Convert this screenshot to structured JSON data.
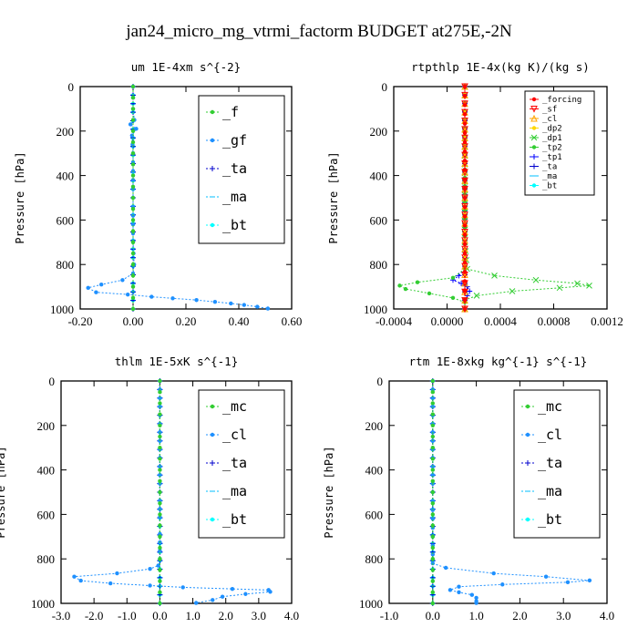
{
  "figure_title": "jan24_micro_mg_vtrmi_factorm  BUDGET at275E,-2N",
  "colors": {
    "_forcing": "#ff0000",
    "_sf": "#ff0000",
    "_cl": "#1e90ff",
    "_cl_small": "#ffa500",
    "_dp2": "#ffd700",
    "_dp1": "#32cd32",
    "_tp2": "#32cd32",
    "_tp1": "#0000ff",
    "_ta": "#0000cd",
    "_ma": "#00bfff",
    "_bt": "#00ffff",
    "_f": "#32cd32",
    "_gf": "#1e90ff",
    "_mc": "#32cd32"
  },
  "chart_data": [
    {
      "type": "line",
      "title": "um   1E-4xm s^{-2}",
      "ylabel": "Pressure [hPa]",
      "xlim": [
        -0.2,
        0.6
      ],
      "ylim": [
        1000,
        0
      ],
      "xticks": [
        "-0.20",
        "0.00",
        "0.20",
        "0.40",
        "0.60"
      ],
      "yticks": [
        "0",
        "200",
        "400",
        "600",
        "800",
        "1000"
      ],
      "legend_position": "top-right",
      "legend": [
        "_f",
        "_gf",
        "_ta",
        "_ma",
        "_bt"
      ],
      "series": [
        {
          "name": "_f",
          "color": "#32cd32",
          "marker": "o",
          "points": [
            [
              0.0,
              0
            ],
            [
              0.0,
              100
            ],
            [
              0.0,
              200
            ],
            [
              0.0,
              300
            ],
            [
              0.0,
              400
            ],
            [
              0.0,
              500
            ],
            [
              0.0,
              600
            ],
            [
              0.0,
              700
            ],
            [
              0.0,
              800
            ],
            [
              0.0,
              900
            ],
            [
              0.0,
              1000
            ]
          ]
        },
        {
          "name": "_gf",
          "color": "#1e90ff",
          "marker": "o",
          "points": [
            [
              0.0,
              0
            ],
            [
              0.0,
              100
            ],
            [
              0.005,
              150
            ],
            [
              -0.01,
              170
            ],
            [
              0.012,
              190
            ],
            [
              -0.004,
              220
            ],
            [
              0.0,
              300
            ],
            [
              0.0,
              500
            ],
            [
              0.0,
              700
            ],
            [
              0.004,
              800
            ],
            [
              0.0,
              840
            ],
            [
              -0.04,
              870
            ],
            [
              -0.12,
              890
            ],
            [
              -0.17,
              905
            ],
            [
              -0.14,
              925
            ],
            [
              -0.02,
              935
            ],
            [
              0.07,
              945
            ],
            [
              0.15,
              952
            ],
            [
              0.24,
              960
            ],
            [
              0.31,
              968
            ],
            [
              0.37,
              975
            ],
            [
              0.42,
              982
            ],
            [
              0.47,
              990
            ],
            [
              0.51,
              998
            ]
          ]
        },
        {
          "name": "_ta",
          "color": "#0000cd",
          "marker": "+",
          "points": [
            [
              0.0,
              0
            ],
            [
              0.0,
              500
            ],
            [
              0.0,
              1000
            ]
          ]
        },
        {
          "name": "_ma",
          "color": "#00bfff",
          "marker": "-",
          "points": [
            [
              0.0,
              0
            ],
            [
              0.0,
              500
            ],
            [
              0.0,
              1000
            ]
          ]
        },
        {
          "name": "_bt",
          "color": "#00ffff",
          "marker": "o",
          "points": [
            [
              0.0,
              0
            ],
            [
              0.0,
              500
            ],
            [
              0.0,
              1000
            ]
          ]
        }
      ]
    },
    {
      "type": "line",
      "title": "rtpthlp   1E-4x(kg K)/(kg s)",
      "ylabel": "Pressure [hPa]",
      "xlim": [
        -0.0006,
        0.0012
      ],
      "ylim": [
        1000,
        0
      ],
      "xticks": [
        "-0.0004",
        "0.0000",
        "0.0004",
        "0.0008",
        "0.0012"
      ],
      "yticks": [
        "0",
        "200",
        "400",
        "600",
        "800",
        "1000"
      ],
      "legend_position": "top-right",
      "legend": [
        "_forcing",
        "_sf",
        "_cl",
        "_dp2",
        "_dp1",
        "_tp2",
        "_tp1",
        "_ta",
        "_ma",
        "_bt"
      ],
      "series": [
        {
          "name": "_forcing",
          "color": "#ff0000",
          "marker": "o",
          "points": [
            [
              0.0,
              0
            ],
            [
              0.0,
              250
            ],
            [
              0.0,
              500
            ],
            [
              0.0,
              750
            ],
            [
              0.0,
              1000
            ]
          ]
        },
        {
          "name": "_sf",
          "color": "#ff0000",
          "marker": "v",
          "points": [
            [
              0.0,
              0
            ],
            [
              0.0,
              500
            ],
            [
              0.0,
              1000
            ]
          ]
        },
        {
          "name": "_cl",
          "color": "#ffa500",
          "marker": "^",
          "points": [
            [
              0.0,
              0
            ],
            [
              0.0,
              500
            ],
            [
              0.0,
              1000
            ]
          ]
        },
        {
          "name": "_dp2",
          "color": "#ffd700",
          "marker": "o",
          "points": [
            [
              0.0,
              0
            ],
            [
              0.0,
              500
            ],
            [
              0.0,
              1000
            ]
          ]
        },
        {
          "name": "_dp1",
          "color": "#32cd32",
          "marker": "x",
          "points": [
            [
              0.0,
              0
            ],
            [
              0.0,
              700
            ],
            [
              2e-05,
              820
            ],
            [
              0.00025,
              850
            ],
            [
              0.0006,
              870
            ],
            [
              0.00095,
              885
            ],
            [
              0.00105,
              895
            ],
            [
              0.0008,
              905
            ],
            [
              0.0004,
              920
            ],
            [
              0.0001,
              940
            ],
            [
              0.0,
              960
            ],
            [
              0.0,
              1000
            ]
          ]
        },
        {
          "name": "_tp2",
          "color": "#32cd32",
          "marker": "o",
          "points": [
            [
              0.0,
              0
            ],
            [
              0.0,
              820
            ],
            [
              -0.0001,
              860
            ],
            [
              -0.0004,
              880
            ],
            [
              -0.00055,
              895
            ],
            [
              -0.0005,
              910
            ],
            [
              -0.0003,
              930
            ],
            [
              -0.0001,
              950
            ],
            [
              0.0,
              970
            ],
            [
              0.0,
              1000
            ]
          ]
        },
        {
          "name": "_tp1",
          "color": "#0000ff",
          "marker": "+",
          "points": [
            [
              0.0,
              0
            ],
            [
              0.0,
              820
            ],
            [
              -5e-05,
              850
            ],
            [
              -0.0001,
              870
            ],
            [
              -3e-05,
              885
            ],
            [
              0.0,
              893
            ],
            [
              2e-05,
              900
            ],
            [
              4e-05,
              920
            ],
            [
              2e-05,
              940
            ],
            [
              0.0,
              960
            ],
            [
              0.0,
              1000
            ]
          ]
        },
        {
          "name": "_ta",
          "color": "#0000cd",
          "marker": "+",
          "points": [
            [
              0.0,
              0
            ],
            [
              0.0,
              500
            ],
            [
              0.0,
              1000
            ]
          ]
        },
        {
          "name": "_ma",
          "color": "#00bfff",
          "marker": "-",
          "points": [
            [
              0.0,
              0
            ],
            [
              0.0,
              500
            ],
            [
              0.0,
              1000
            ]
          ]
        },
        {
          "name": "_bt",
          "color": "#00ffff",
          "marker": "o",
          "points": [
            [
              0.0,
              0
            ],
            [
              0.0,
              500
            ],
            [
              0.0,
              1000
            ]
          ]
        }
      ]
    },
    {
      "type": "line",
      "title": "thlm   1E-5xK s^{-1}",
      "ylabel": "Pressure [hPa]",
      "xlim": [
        -3.0,
        4.0
      ],
      "ylim": [
        1000,
        0
      ],
      "xticks": [
        "-3.0",
        "-2.0",
        "-1.0",
        "0.0",
        "1.0",
        "2.0",
        "3.0",
        "4.0"
      ],
      "yticks": [
        "0",
        "200",
        "400",
        "600",
        "800",
        "1000"
      ],
      "legend_position": "top-right",
      "legend": [
        "_mc",
        "_cl",
        "_ta",
        "_ma",
        "_bt"
      ],
      "series": [
        {
          "name": "_mc",
          "color": "#32cd32",
          "marker": "o",
          "points": [
            [
              0.0,
              0
            ],
            [
              0.0,
              100
            ],
            [
              0.0,
              200
            ],
            [
              0.0,
              300
            ],
            [
              0.0,
              400
            ],
            [
              0.0,
              500
            ],
            [
              0.0,
              600
            ],
            [
              0.0,
              700
            ],
            [
              0.0,
              800
            ],
            [
              0.0,
              900
            ],
            [
              0.0,
              1000
            ]
          ]
        },
        {
          "name": "_cl",
          "color": "#1e90ff",
          "marker": "o",
          "points": [
            [
              0.0,
              0
            ],
            [
              0.0,
              500
            ],
            [
              0.0,
              800
            ],
            [
              -0.05,
              830
            ],
            [
              -0.3,
              845
            ],
            [
              -1.3,
              865
            ],
            [
              -2.6,
              880
            ],
            [
              -2.4,
              898
            ],
            [
              -1.5,
              910
            ],
            [
              -0.3,
              920
            ],
            [
              0.7,
              928
            ],
            [
              2.2,
              935
            ],
            [
              3.3,
              940
            ],
            [
              3.35,
              948
            ],
            [
              2.6,
              958
            ],
            [
              1.9,
              970
            ],
            [
              1.6,
              985
            ],
            [
              1.1,
              998
            ]
          ]
        },
        {
          "name": "_ta",
          "color": "#0000cd",
          "marker": "+",
          "points": [
            [
              0.0,
              0
            ],
            [
              0.0,
              500
            ],
            [
              0.0,
              1000
            ]
          ]
        },
        {
          "name": "_ma",
          "color": "#00bfff",
          "marker": "-",
          "points": [
            [
              0.0,
              0
            ],
            [
              0.0,
              500
            ],
            [
              0.0,
              1000
            ]
          ]
        },
        {
          "name": "_bt",
          "color": "#00ffff",
          "marker": "o",
          "points": [
            [
              0.0,
              0
            ],
            [
              0.0,
              500
            ],
            [
              0.0,
              1000
            ]
          ]
        }
      ]
    },
    {
      "type": "line",
      "title": "rtm   1E-8xkg kg^{-1} s^{-1}",
      "ylabel": "Pressure [hPa]",
      "xlim": [
        -1.0,
        4.0
      ],
      "ylim": [
        1000,
        0
      ],
      "xticks": [
        "-1.0",
        "0.0",
        "1.0",
        "2.0",
        "3.0",
        "4.0"
      ],
      "yticks": [
        "0",
        "200",
        "400",
        "600",
        "800",
        "1000"
      ],
      "legend_position": "top-right",
      "legend": [
        "_mc",
        "_cl",
        "_ta",
        "_ma",
        "_bt"
      ],
      "series": [
        {
          "name": "_mc",
          "color": "#32cd32",
          "marker": "o",
          "points": [
            [
              0.0,
              0
            ],
            [
              0.0,
              100
            ],
            [
              0.0,
              200
            ],
            [
              0.0,
              300
            ],
            [
              0.0,
              400
            ],
            [
              0.0,
              500
            ],
            [
              0.0,
              600
            ],
            [
              0.0,
              700
            ],
            [
              0.0,
              800
            ],
            [
              0.0,
              900
            ],
            [
              0.0,
              1000
            ]
          ]
        },
        {
          "name": "_cl",
          "color": "#1e90ff",
          "marker": "o",
          "points": [
            [
              0.0,
              0
            ],
            [
              0.0,
              500
            ],
            [
              0.0,
              820
            ],
            [
              0.3,
              840
            ],
            [
              1.4,
              865
            ],
            [
              2.6,
              880
            ],
            [
              3.6,
              897
            ],
            [
              3.1,
              905
            ],
            [
              1.6,
              915
            ],
            [
              0.6,
              925
            ],
            [
              0.4,
              940
            ],
            [
              0.6,
              950
            ],
            [
              0.9,
              962
            ],
            [
              1.0,
              975
            ],
            [
              1.0,
              990
            ],
            [
              1.0,
              998
            ]
          ]
        },
        {
          "name": "_ta",
          "color": "#0000cd",
          "marker": "+",
          "points": [
            [
              0.0,
              0
            ],
            [
              0.0,
              500
            ],
            [
              0.0,
              1000
            ]
          ]
        },
        {
          "name": "_ma",
          "color": "#00bfff",
          "marker": "-",
          "points": [
            [
              0.0,
              0
            ],
            [
              0.0,
              500
            ],
            [
              0.0,
              1000
            ]
          ]
        },
        {
          "name": "_bt",
          "color": "#00ffff",
          "marker": "o",
          "points": [
            [
              0.0,
              0
            ],
            [
              0.0,
              500
            ],
            [
              0.0,
              1000
            ]
          ]
        }
      ]
    }
  ]
}
